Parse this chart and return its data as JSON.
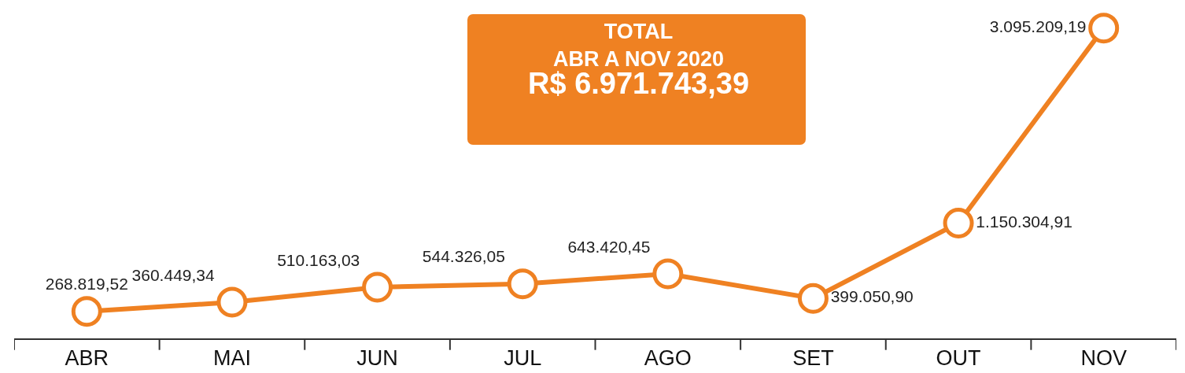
{
  "chart_data": {
    "type": "line",
    "categories": [
      "ABR",
      "MAI",
      "JUN",
      "JUL",
      "AGO",
      "SET",
      "OUT",
      "NOV"
    ],
    "series": [
      {
        "color": "#ef8122",
        "values": [
          268819.52,
          360449.34,
          510163.03,
          544326.05,
          643420.45,
          399050.9,
          1150304.91,
          3095209.19
        ],
        "value_labels": [
          "268.819,52",
          "360.449,34",
          "510.163,03",
          "544.326,05",
          "643.420,45",
          "399.050,90",
          "1.150.304,91",
          "3.095.209,19"
        ]
      }
    ],
    "annotations": [
      "TOTAL",
      "ABR A NOV 2020",
      "R$ 6.971.743,39"
    ],
    "marker": "circle",
    "line_style": "solid"
  }
}
